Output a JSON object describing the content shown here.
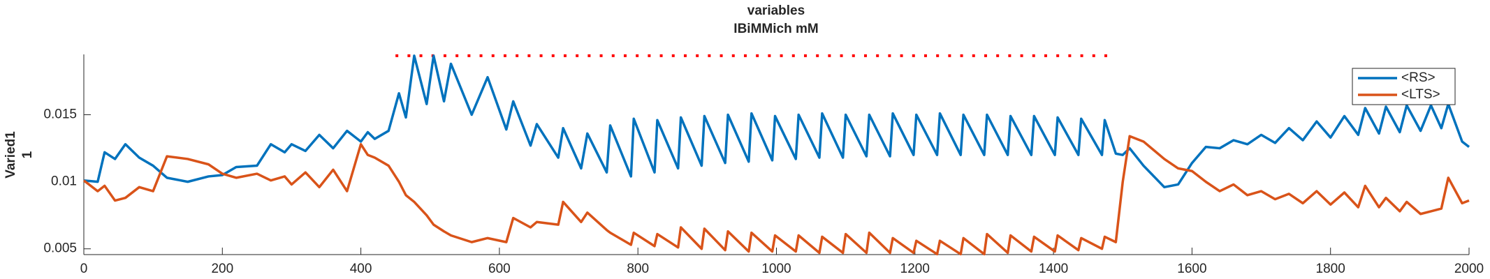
{
  "chart_data": {
    "type": "line",
    "title": "variables",
    "subtitle": "IBiMMich mM",
    "ylabel": [
      "Varied1",
      "1"
    ],
    "x": [
      0,
      20,
      30,
      45,
      60,
      80,
      100,
      120,
      150,
      180,
      200,
      220,
      250,
      270,
      290,
      300,
      320,
      340,
      360,
      380,
      400,
      410,
      420,
      440,
      455,
      465,
      477,
      495,
      505,
      520,
      530,
      560,
      583,
      610,
      620,
      645,
      654,
      685,
      692,
      718,
      727,
      755,
      760,
      790,
      794,
      824,
      828,
      858,
      862,
      892,
      896,
      926,
      930,
      960,
      964,
      994,
      998,
      1028,
      1032,
      1062,
      1066,
      1096,
      1100,
      1130,
      1134,
      1164,
      1168,
      1198,
      1202,
      1232,
      1236,
      1266,
      1270,
      1300,
      1304,
      1334,
      1338,
      1368,
      1372,
      1402,
      1406,
      1436,
      1440,
      1470,
      1474,
      1490,
      1500,
      1510,
      1530,
      1560,
      1580,
      1600,
      1620,
      1640,
      1660,
      1680,
      1700,
      1720,
      1740,
      1760,
      1780,
      1800,
      1820,
      1840,
      1850,
      1870,
      1880,
      1900,
      1910,
      1930,
      1945,
      1960,
      1970,
      1990,
      2000
    ],
    "series": [
      {
        "name": "<RS>",
        "color": "#0072BD",
        "values": [
          0.0101,
          0.01,
          0.0122,
          0.0117,
          0.0128,
          0.0118,
          0.0112,
          0.0103,
          0.01,
          0.0104,
          0.0105,
          0.0111,
          0.0112,
          0.0128,
          0.0122,
          0.0128,
          0.0123,
          0.0135,
          0.0125,
          0.0138,
          0.013,
          0.0137,
          0.0132,
          0.0138,
          0.0166,
          0.0148,
          0.0194,
          0.0158,
          0.0194,
          0.016,
          0.0188,
          0.015,
          0.0178,
          0.0139,
          0.016,
          0.0127,
          0.0143,
          0.0118,
          0.014,
          0.011,
          0.0136,
          0.0107,
          0.0142,
          0.0104,
          0.0147,
          0.0107,
          0.0146,
          0.011,
          0.0148,
          0.0112,
          0.0149,
          0.0114,
          0.015,
          0.0115,
          0.0151,
          0.0116,
          0.0149,
          0.0117,
          0.015,
          0.0118,
          0.0151,
          0.0118,
          0.015,
          0.0119,
          0.015,
          0.0119,
          0.0151,
          0.012,
          0.015,
          0.012,
          0.0151,
          0.012,
          0.015,
          0.012,
          0.015,
          0.012,
          0.0149,
          0.012,
          0.0149,
          0.012,
          0.0148,
          0.012,
          0.0147,
          0.012,
          0.0146,
          0.0121,
          0.012,
          0.0125,
          0.0112,
          0.0096,
          0.0098,
          0.0114,
          0.0126,
          0.0125,
          0.0131,
          0.0128,
          0.0135,
          0.0129,
          0.014,
          0.0131,
          0.0145,
          0.0133,
          0.0149,
          0.0135,
          0.0155,
          0.0136,
          0.0156,
          0.0137,
          0.0157,
          0.0138,
          0.0157,
          0.014,
          0.0158,
          0.013,
          0.0126
        ]
      },
      {
        "name": "<LTS>",
        "color": "#D95319",
        "values": [
          0.0101,
          0.0093,
          0.0097,
          0.0086,
          0.0088,
          0.0096,
          0.0093,
          0.0119,
          0.0117,
          0.0113,
          0.0106,
          0.0103,
          0.0106,
          0.0101,
          0.0104,
          0.0098,
          0.0107,
          0.0096,
          0.0109,
          0.0093,
          0.0128,
          0.012,
          0.0118,
          0.0112,
          0.01,
          0.009,
          0.0085,
          0.0075,
          0.0068,
          0.0063,
          0.006,
          0.0055,
          0.0058,
          0.0055,
          0.0073,
          0.0066,
          0.007,
          0.0068,
          0.0085,
          0.007,
          0.0077,
          0.0064,
          0.0062,
          0.0053,
          0.0062,
          0.0052,
          0.0061,
          0.0051,
          0.0066,
          0.005,
          0.0065,
          0.0049,
          0.0063,
          0.0048,
          0.0062,
          0.0048,
          0.006,
          0.0048,
          0.006,
          0.0047,
          0.0059,
          0.0047,
          0.0061,
          0.0047,
          0.0062,
          0.0047,
          0.0058,
          0.0047,
          0.0056,
          0.0046,
          0.0056,
          0.0046,
          0.0058,
          0.0046,
          0.0061,
          0.0047,
          0.006,
          0.0048,
          0.0059,
          0.0048,
          0.006,
          0.0049,
          0.0058,
          0.005,
          0.0059,
          0.0055,
          0.01,
          0.0134,
          0.013,
          0.0117,
          0.011,
          0.0108,
          0.01,
          0.0093,
          0.0098,
          0.009,
          0.0093,
          0.0087,
          0.0091,
          0.0084,
          0.0093,
          0.0083,
          0.0092,
          0.0081,
          0.0097,
          0.0081,
          0.0088,
          0.0078,
          0.0085,
          0.0076,
          0.0078,
          0.008,
          0.0103,
          0.0084,
          0.0086
        ]
      }
    ],
    "stim_marker": {
      "x": [
        450,
        1485
      ],
      "y": 0.0194,
      "color": "#ff0000"
    },
    "xlim": [
      0,
      2000
    ],
    "xticks": [
      0,
      200,
      400,
      600,
      800,
      1000,
      1200,
      1400,
      1600,
      1800,
      2000
    ],
    "ylim": [
      0.00457,
      0.0195
    ],
    "yticks": [
      0.005,
      0.01,
      0.015
    ],
    "grid": false,
    "legend": "top-right"
  }
}
